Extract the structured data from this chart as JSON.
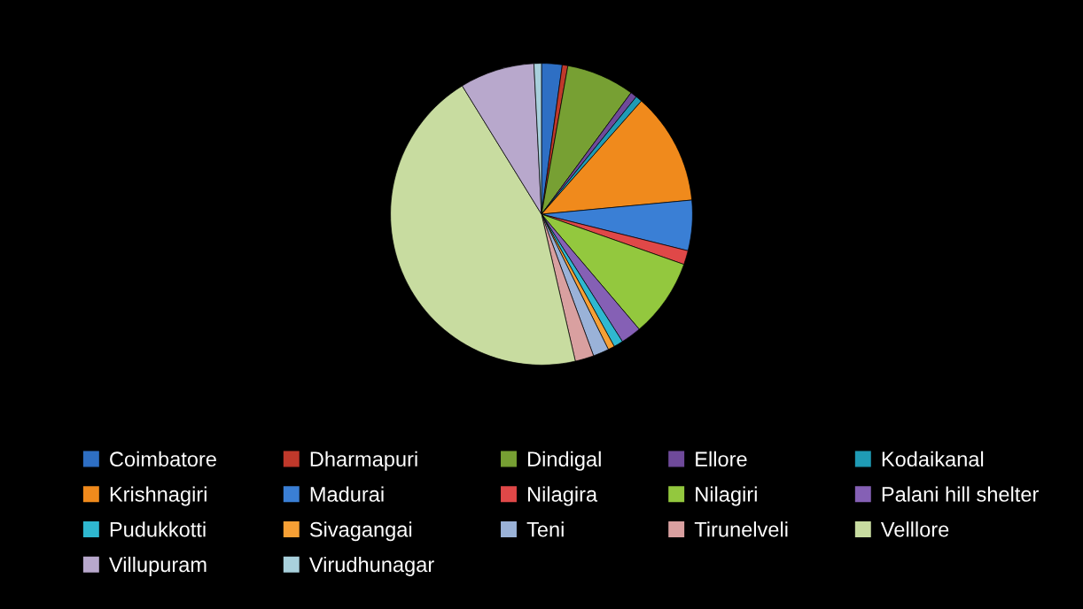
{
  "chart_data": {
    "type": "pie",
    "legend": "bottom",
    "categories": [
      "Coimbatore",
      "Dharmapuri",
      "Dindigal",
      "Ellore",
      "Kodaikanal",
      "Krishnagiri",
      "Madurai",
      "Nilagira",
      "Nilagiri",
      "Palani hill shelter",
      "Pudukkotti",
      "Sivagangai",
      "Teni",
      "Tirunelveli",
      "Velllore",
      "Villupuram",
      "Virudhunagar"
    ],
    "values": [
      2.2,
      0.6,
      7.3,
      0.7,
      0.7,
      12,
      5.4,
      1.5,
      8.4,
      2.2,
      1,
      0.7,
      1.7,
      2,
      44.8,
      8,
      0.8
    ],
    "colors": [
      "#2e6fc4",
      "#c0392b",
      "#77a033",
      "#6f4a9a",
      "#1f9bb5",
      "#f08a1c",
      "#3a7fd5",
      "#e04848",
      "#93c83e",
      "#8560b5",
      "#2fb8d0",
      "#f7a035",
      "#9ab2d8",
      "#d9a0a0",
      "#c8dca0",
      "#b8a8cc",
      "#a8d0dc"
    ]
  }
}
